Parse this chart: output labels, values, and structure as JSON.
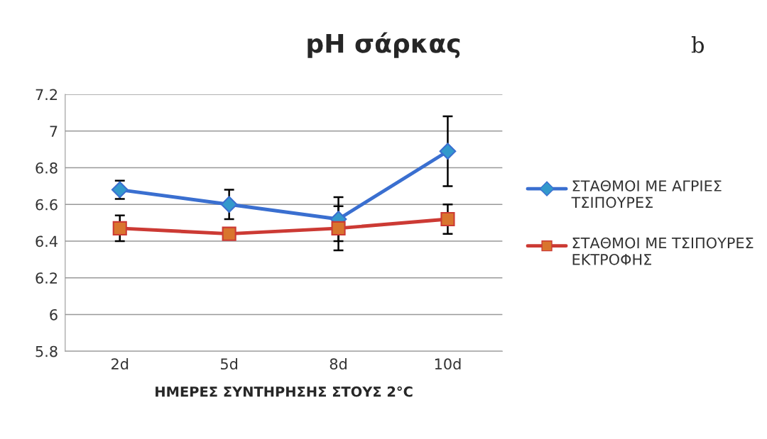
{
  "chart_data": {
    "type": "line",
    "title": "pH σάρκας",
    "xlabel": "ΗΜΕΡΕΣ ΣΥΝΤΗΡΗΣΗΣ ΣΤΟΥΣ 2°C",
    "categories": [
      "2d",
      "5d",
      "8d",
      "10d"
    ],
    "series": [
      {
        "name": "ΣΤΑΘΜΟΙ ΜΕ ΑΓΡΙΕΣ ΤΣΙΠΟΥΡΕΣ",
        "color": "#3a6fd0",
        "marker": "diamond",
        "values": [
          6.68,
          6.6,
          6.52,
          6.89
        ],
        "errors": [
          0.05,
          0.08,
          0.12,
          0.19
        ]
      },
      {
        "name": "ΣΤΑΘΜΟΙ ΜΕ ΤΣΙΠΟΥΡΕΣ ΕΚΤΡΟΦΗΣ",
        "color": "#cc3a34",
        "marker": "square",
        "values": [
          6.47,
          6.44,
          6.47,
          6.52
        ],
        "errors": [
          0.07,
          null,
          0.12,
          0.08
        ]
      }
    ],
    "ylim": [
      5.8,
      7.2
    ],
    "yticks": [
      5.8,
      6,
      6.2,
      6.4,
      6.6,
      6.8,
      7,
      7.2
    ],
    "grid": "y",
    "legend": "right",
    "annotations": [
      "b"
    ]
  }
}
